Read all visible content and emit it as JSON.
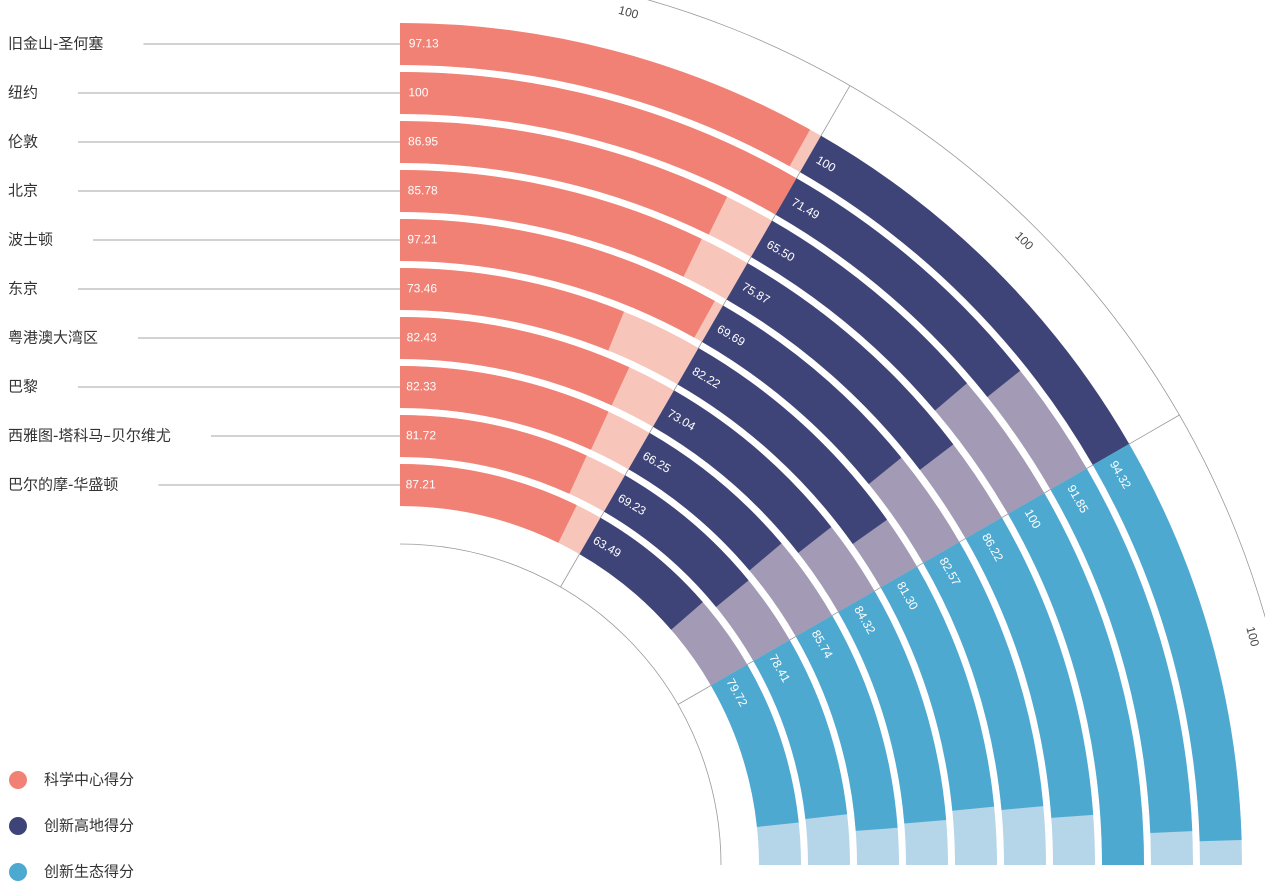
{
  "chart_data": {
    "type": "radial-bar",
    "categories": [
      "旧金山-圣何塞",
      "纽约",
      "伦敦",
      "北京",
      "波士顿",
      "东京",
      "粤港澳大湾区",
      "巴黎",
      "西雅图-塔科马–贝尔维尤",
      "巴尔的摩-华盛顿"
    ],
    "series": [
      {
        "name": "科学中心得分",
        "color": "#f08174",
        "track_color": "#f7c5b9",
        "max": 100,
        "values": [
          97.13,
          100,
          86.95,
          85.78,
          97.21,
          73.46,
          82.43,
          82.33,
          81.72,
          87.21
        ],
        "value_labels": [
          "97.13",
          "100",
          "86.95",
          "85.78",
          "97.21",
          "73.46",
          "82.43",
          "82.33",
          "81.72",
          "87.21"
        ]
      },
      {
        "name": "创新高地得分",
        "color": "#3f4478",
        "track_color": "#a39ab5",
        "max": 100,
        "values": [
          100,
          71.49,
          65.5,
          75.87,
          69.69,
          82.22,
          73.04,
          66.25,
          69.23,
          63.49
        ],
        "value_labels": [
          "100",
          "71.49",
          "65.50",
          "75.87",
          "69.69",
          "82.22",
          "73.04",
          "66.25",
          "69.23",
          "63.49"
        ]
      },
      {
        "name": "创新生态得分",
        "color": "#4ea9d1",
        "track_color": "#b5d5e9",
        "max": 100,
        "values": [
          94.32,
          91.85,
          100,
          86.22,
          82.57,
          81.3,
          84.32,
          85.74,
          78.41,
          79.72
        ],
        "value_labels": [
          "94.32",
          "91.85",
          "100",
          "86.22",
          "82.57",
          "81.30",
          "84.32",
          "85.74",
          "78.41",
          "79.72"
        ]
      }
    ]
  }
}
